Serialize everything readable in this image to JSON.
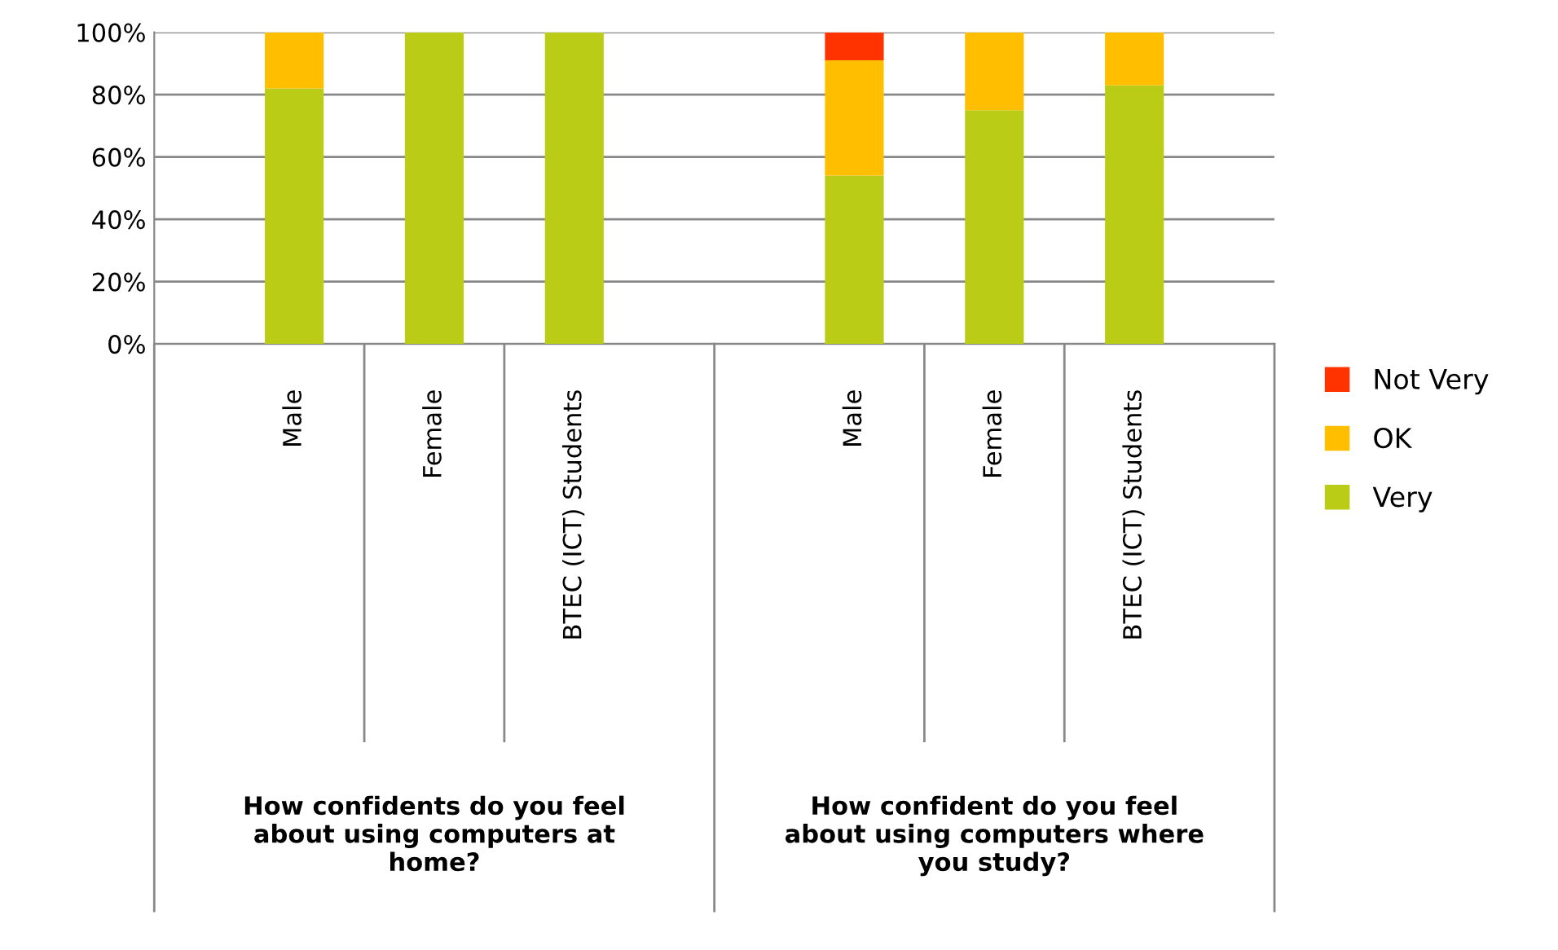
{
  "chart_data": {
    "type": "bar",
    "stacked": true,
    "categories": [
      "Male",
      "Female",
      "BTEC (ICT) Students",
      null,
      "Male",
      "Female",
      "BTEC (ICT) Students"
    ],
    "series": [
      {
        "name": "Very",
        "color": "#bbcc16",
        "values": [
          82,
          100,
          100,
          null,
          54,
          75,
          83
        ]
      },
      {
        "name": "OK",
        "color": "#ffbf00",
        "values": [
          18,
          0,
          0,
          null,
          37,
          25,
          17
        ]
      },
      {
        "name": "Not Very",
        "color": "#ff3300",
        "values": [
          0,
          0,
          0,
          null,
          9,
          0,
          0
        ]
      }
    ],
    "ylim": [
      0,
      100
    ],
    "yticks": [
      {
        "value": 0,
        "label": "0%"
      },
      {
        "value": 20,
        "label": "20%"
      },
      {
        "value": 40,
        "label": "40%"
      },
      {
        "value": 60,
        "label": "60%"
      },
      {
        "value": 80,
        "label": "80%"
      },
      {
        "value": 100,
        "label": "100%"
      }
    ],
    "grid": "y",
    "legend": "right",
    "annotations": [
      "How confidents do you feel about using computers at home?",
      "How confident do you feel about using computers where you study?"
    ]
  }
}
